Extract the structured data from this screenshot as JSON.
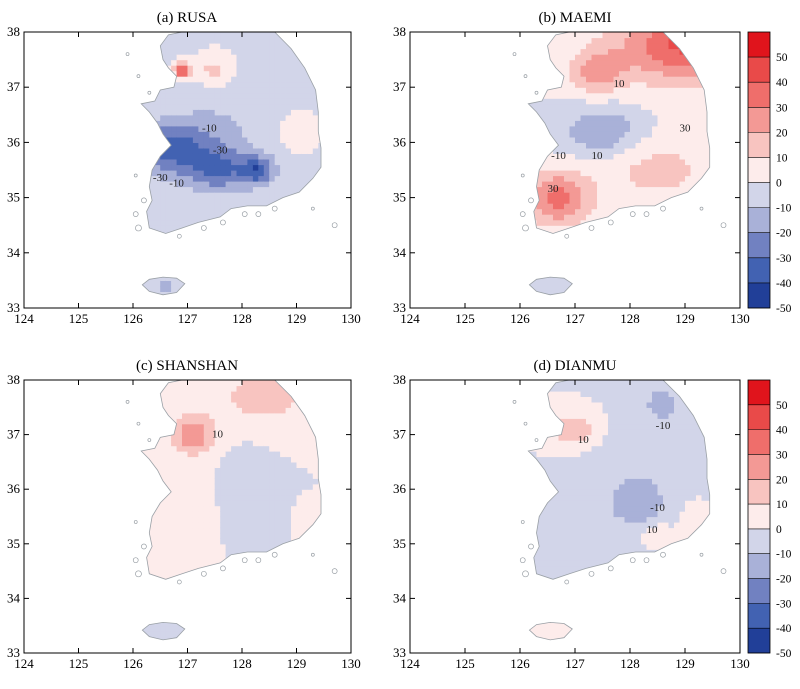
{
  "panels": [
    {
      "title": "(a) RUSA",
      "colorbar": false,
      "field": [
        {
          "x": 127.5,
          "y": 36.0,
          "sx": 1.0,
          "sy": 1.0,
          "a": -12
        },
        {
          "x": 126.6,
          "y": 35.9,
          "sx": 0.8,
          "sy": 0.45,
          "a": -30
        },
        {
          "x": 127.6,
          "y": 35.5,
          "sx": 0.6,
          "sy": 0.35,
          "a": -22
        },
        {
          "x": 128.3,
          "y": 35.5,
          "sx": 0.3,
          "sy": 0.25,
          "a": -30
        },
        {
          "x": 126.9,
          "y": 37.3,
          "sx": 0.13,
          "sy": 0.13,
          "a": 50
        },
        {
          "x": 127.5,
          "y": 37.3,
          "sx": 0.3,
          "sy": 0.25,
          "a": 16
        },
        {
          "x": 129.0,
          "y": 36.2,
          "sx": 0.25,
          "sy": 0.3,
          "a": 10
        },
        {
          "x": 128.6,
          "y": 37.2,
          "sx": 0.5,
          "sy": 0.5,
          "a": -6
        },
        {
          "x": 126.6,
          "y": 33.4,
          "sx": 0.3,
          "sy": 0.15,
          "a": -14
        }
      ],
      "clabels": [
        {
          "text": "-10",
          "lon": 127.4,
          "lat": 36.2
        },
        {
          "text": "-30",
          "lon": 127.6,
          "lat": 35.8
        },
        {
          "text": "-30",
          "lon": 126.5,
          "lat": 35.3
        },
        {
          "text": "-10",
          "lon": 126.8,
          "lat": 35.2
        }
      ]
    },
    {
      "title": "(b) MAEMI",
      "colorbar": true,
      "field": [
        {
          "x": 129.0,
          "y": 37.8,
          "sx": 1.2,
          "sy": 0.7,
          "a": 42
        },
        {
          "x": 127.4,
          "y": 37.3,
          "sx": 0.5,
          "sy": 0.4,
          "a": 25
        },
        {
          "x": 127.5,
          "y": 36.2,
          "sx": 0.7,
          "sy": 0.45,
          "a": -20
        },
        {
          "x": 126.7,
          "y": 35.0,
          "sx": 0.6,
          "sy": 0.5,
          "a": 33
        },
        {
          "x": 128.5,
          "y": 35.5,
          "sx": 1.0,
          "sy": 0.6,
          "a": 14
        },
        {
          "x": 126.7,
          "y": 33.45,
          "sx": 0.3,
          "sy": 0.15,
          "a": -4
        }
      ],
      "clabels": [
        {
          "text": "10",
          "lon": 127.8,
          "lat": 37.0
        },
        {
          "text": "30",
          "lon": 129.0,
          "lat": 36.2
        },
        {
          "text": "-10",
          "lon": 126.7,
          "lat": 35.7
        },
        {
          "text": "10",
          "lon": 127.4,
          "lat": 35.7
        },
        {
          "text": "30",
          "lon": 126.6,
          "lat": 35.1
        }
      ]
    },
    {
      "title": "(c) SHANSHAN",
      "colorbar": false,
      "field": [
        {
          "x": 128.4,
          "y": 37.7,
          "sx": 1.0,
          "sy": 0.55,
          "a": 14
        },
        {
          "x": 127.1,
          "y": 37.0,
          "sx": 0.4,
          "sy": 0.35,
          "a": 28
        },
        {
          "x": 128.1,
          "y": 35.8,
          "sx": 0.45,
          "sy": 0.75,
          "a": -9
        },
        {
          "x": 126.8,
          "y": 35.5,
          "sx": 0.8,
          "sy": 0.8,
          "a": 5
        },
        {
          "x": 129.2,
          "y": 35.4,
          "sx": 0.2,
          "sy": 0.25,
          "a": 8
        },
        {
          "x": 126.6,
          "y": 33.45,
          "sx": 0.3,
          "sy": 0.15,
          "a": -8
        }
      ],
      "clabels": [
        {
          "text": "10",
          "lon": 127.55,
          "lat": 36.95
        }
      ]
    },
    {
      "title": "(d) DIANMU",
      "colorbar": true,
      "field": [
        {
          "x": 128.2,
          "y": 36.4,
          "sx": 1.1,
          "sy": 1.0,
          "a": -9
        },
        {
          "x": 128.6,
          "y": 37.6,
          "sx": 0.4,
          "sy": 0.35,
          "a": -12
        },
        {
          "x": 128.1,
          "y": 35.7,
          "sx": 0.45,
          "sy": 0.35,
          "a": -14
        },
        {
          "x": 127.0,
          "y": 37.1,
          "sx": 0.5,
          "sy": 0.35,
          "a": 18
        },
        {
          "x": 129.2,
          "y": 35.5,
          "sx": 0.25,
          "sy": 0.3,
          "a": 12
        },
        {
          "x": 128.5,
          "y": 35.2,
          "sx": 0.3,
          "sy": 0.2,
          "a": 9
        },
        {
          "x": 126.6,
          "y": 33.45,
          "sx": 0.3,
          "sy": 0.15,
          "a": 6
        }
      ],
      "clabels": [
        {
          "text": "-10",
          "lon": 128.6,
          "lat": 37.1
        },
        {
          "text": "-10",
          "lon": 128.5,
          "lat": 35.6
        },
        {
          "text": "10",
          "lon": 128.4,
          "lat": 35.2
        },
        {
          "text": "10",
          "lon": 127.15,
          "lat": 36.85
        }
      ]
    }
  ],
  "axes": {
    "xticks": [
      124,
      125,
      126,
      127,
      128,
      129,
      130
    ],
    "yticks": [
      33,
      34,
      35,
      36,
      37,
      38
    ],
    "xlim": [
      124,
      130
    ],
    "ylim": [
      33,
      38
    ]
  },
  "colorbar": {
    "labels": [
      "50",
      "40",
      "30",
      "20",
      "10",
      "0",
      "-10",
      "-20",
      "-30",
      "-40",
      "-50"
    ],
    "colors": [
      "#e0141c",
      "#e94a49",
      "#ef6e6b",
      "#f39995",
      "#f8c4c0",
      "#fdeceb",
      "#d2d5e9",
      "#a9b1d8",
      "#7181c1",
      "#4262b2",
      "#213f98"
    ],
    "levels": [
      60,
      50,
      40,
      30,
      20,
      10,
      0,
      -10,
      -20,
      -30,
      -40,
      -50
    ]
  }
}
